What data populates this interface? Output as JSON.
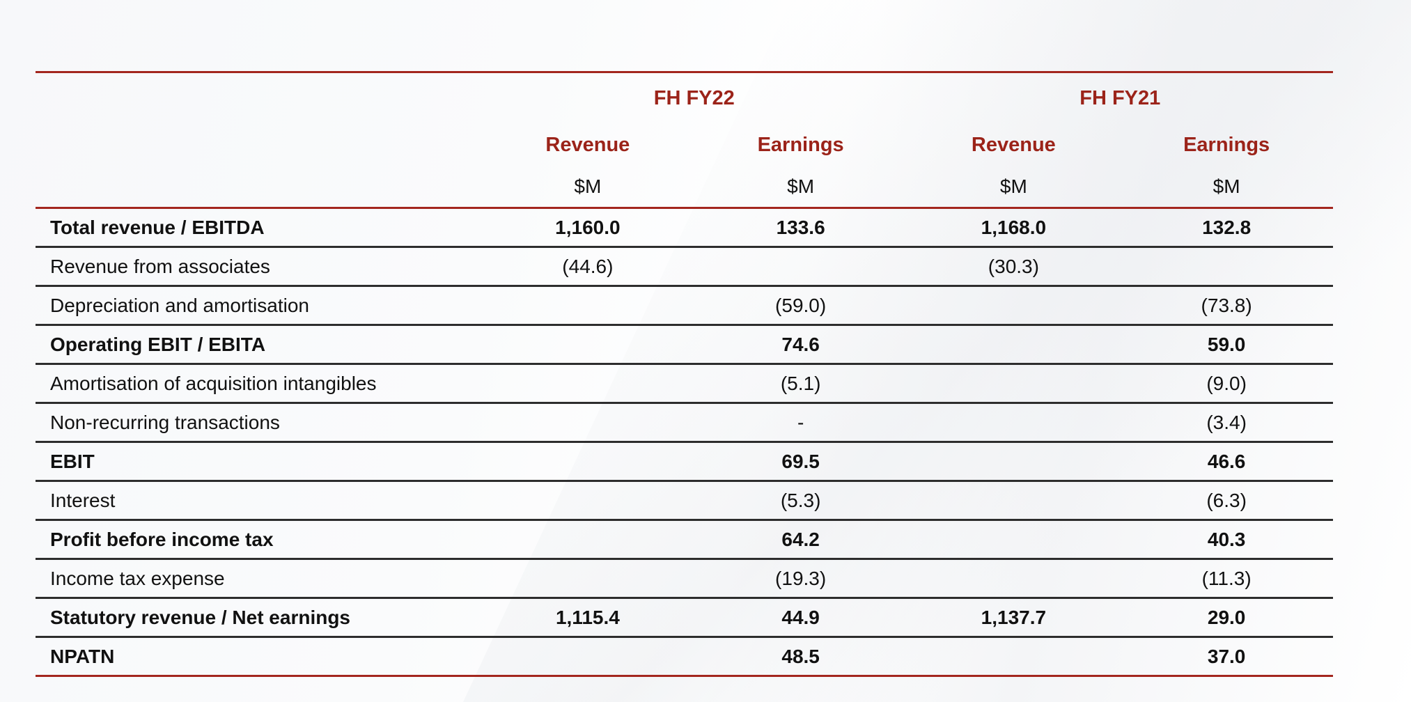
{
  "table": {
    "groups": [
      {
        "label": "FH FY22"
      },
      {
        "label": "FH FY21"
      }
    ],
    "subheaders": [
      "Revenue",
      "Earnings",
      "Revenue",
      "Earnings"
    ],
    "units": [
      "$M",
      "$M",
      "$M",
      "$M"
    ],
    "rows": [
      {
        "label": "Total revenue / EBITDA",
        "values": [
          "1,160.0",
          "133.6",
          "1,168.0",
          "132.8"
        ],
        "bold": true
      },
      {
        "label": "Revenue from associates",
        "values": [
          "(44.6)",
          "",
          "(30.3)",
          ""
        ],
        "bold": false
      },
      {
        "label": "Depreciation and amortisation",
        "values": [
          "",
          "(59.0)",
          "",
          "(73.8)"
        ],
        "bold": false
      },
      {
        "label": "Operating EBIT / EBITA",
        "values": [
          "",
          "74.6",
          "",
          "59.0"
        ],
        "bold": true
      },
      {
        "label": "Amortisation of acquisition intangibles",
        "values": [
          "",
          "(5.1)",
          "",
          "(9.0)"
        ],
        "bold": false
      },
      {
        "label": "Non-recurring transactions",
        "values": [
          "",
          "-",
          "",
          "(3.4)"
        ],
        "bold": false
      },
      {
        "label": "EBIT",
        "values": [
          "",
          "69.5",
          "",
          "46.6"
        ],
        "bold": true
      },
      {
        "label": "Interest",
        "values": [
          "",
          "(5.3)",
          "",
          "(6.3)"
        ],
        "bold": false
      },
      {
        "label": "Profit before income tax",
        "values": [
          "",
          "64.2",
          "",
          "40.3"
        ],
        "bold": true
      },
      {
        "label": "Income tax expense",
        "values": [
          "",
          "(19.3)",
          "",
          "(11.3)"
        ],
        "bold": false
      },
      {
        "label": "Statutory revenue / Net earnings",
        "values": [
          "1,115.4",
          "44.9",
          "1,137.7",
          "29.0"
        ],
        "bold": true
      },
      {
        "label": "NPATN",
        "values": [
          "",
          "48.5",
          "",
          "37.0"
        ],
        "bold": true
      }
    ]
  },
  "colors": {
    "accent": "#a3261e",
    "header_text": "#9b2319",
    "row_rule": "#2d2d2d",
    "body_text": "#111111"
  }
}
